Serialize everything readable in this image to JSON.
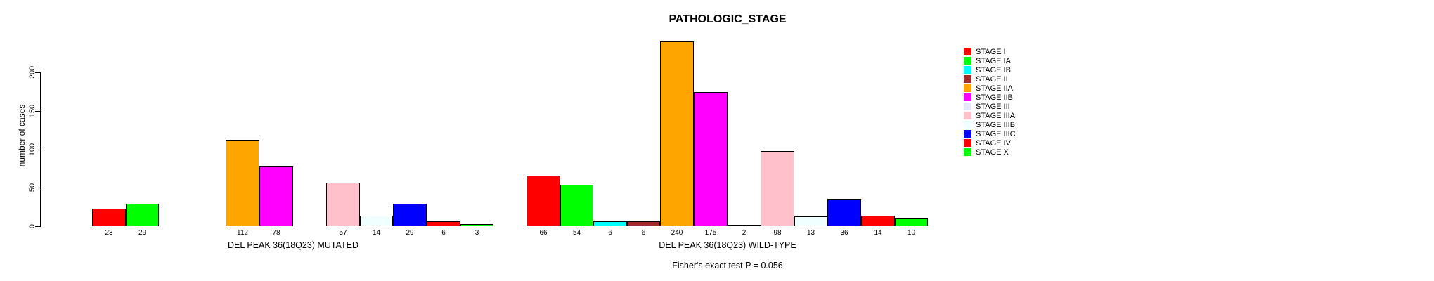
{
  "chart_data": {
    "type": "bar",
    "title": "PATHOLOGIC_STAGE",
    "ylabel": "number of cases",
    "xlabel": "",
    "yticks": [
      0,
      50,
      100,
      150,
      200
    ],
    "ylim": [
      0,
      245
    ],
    "grid": false,
    "legend_position": "right",
    "bar_border_color": "#000000",
    "stages": [
      {
        "label": "STAGE I",
        "color": "#FF0000"
      },
      {
        "label": "STAGE IA",
        "color": "#00FF00"
      },
      {
        "label": "STAGE IB",
        "color": "#00FFFF"
      },
      {
        "label": "STAGE II",
        "color": "#A52A2A"
      },
      {
        "label": "STAGE IIA",
        "color": "#FFA500"
      },
      {
        "label": "STAGE IIB",
        "color": "#FF00FF"
      },
      {
        "label": "STAGE III",
        "color": "#E6E6FA"
      },
      {
        "label": "STAGE IIIA",
        "color": "#FFC0CB"
      },
      {
        "label": "STAGE IIIB",
        "color": "#F0FFFF"
      },
      {
        "label": "STAGE IIIC",
        "color": "#0000FF"
      },
      {
        "label": "STAGE IV",
        "color": "#FF0000"
      },
      {
        "label": "STAGE X",
        "color": "#00FF00"
      }
    ],
    "groups": [
      {
        "label": "DEL PEAK 36(18Q23) MUTATED",
        "values": [
          23,
          29,
          0,
          0,
          112,
          78,
          0,
          57,
          14,
          29,
          6,
          3
        ]
      },
      {
        "label": "DEL PEAK 36(18Q23) WILD-TYPE",
        "values": [
          66,
          54,
          6,
          6,
          240,
          175,
          2,
          98,
          13,
          36,
          14,
          10
        ]
      }
    ],
    "hide_zero_value_labels": true,
    "annotation": "Fisher's exact test P = 0.056"
  }
}
